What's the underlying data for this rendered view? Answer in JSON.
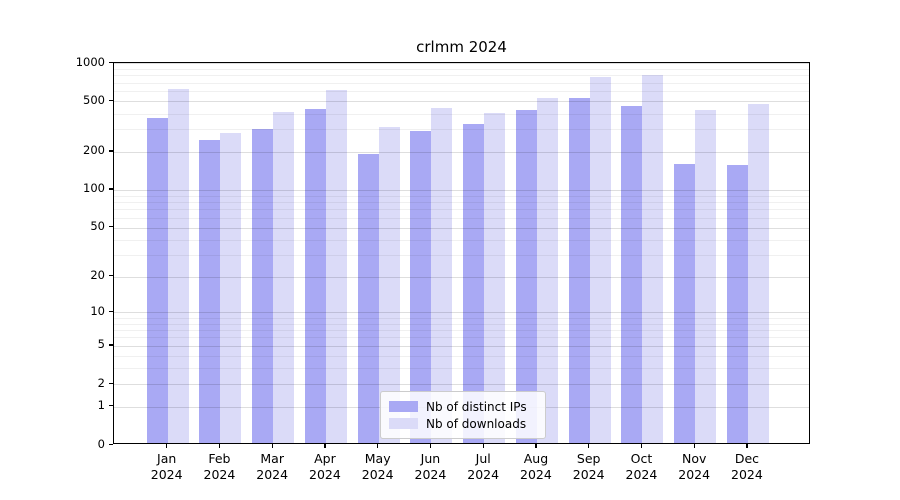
{
  "title": "crlmm 2024",
  "legend": {
    "items": [
      {
        "label": "Nb of distinct IPs",
        "color": "#a9a9f4"
      },
      {
        "label": "Nb of downloads",
        "color": "#dbdbf8"
      }
    ]
  },
  "chart_data": {
    "type": "bar",
    "title": "crlmm 2024",
    "categories": [
      "Jan 2024",
      "Feb 2024",
      "Mar 2024",
      "Apr 2024",
      "May 2024",
      "Jun 2024",
      "Jul 2024",
      "Aug 2024",
      "Sep 2024",
      "Oct 2024",
      "Nov 2024",
      "Dec 2024"
    ],
    "series": [
      {
        "name": "Nb of distinct IPs",
        "color": "#a9a9f4",
        "values": [
          355,
          240,
          290,
          420,
          185,
          280,
          320,
          415,
          515,
          445,
          155,
          152
        ]
      },
      {
        "name": "Nb of downloads",
        "color": "#dbdbf8",
        "values": [
          600,
          270,
          395,
          590,
          300,
          430,
          390,
          515,
          755,
          770,
          415,
          460
        ]
      }
    ],
    "yscale": "log10(1+x)",
    "ylim": [
      0,
      1000
    ],
    "yticks": [
      0,
      1,
      2,
      5,
      10,
      20,
      50,
      100,
      200,
      500,
      1000
    ],
    "minor_gridlines": [
      3,
      4,
      6,
      7,
      8,
      9,
      30,
      40,
      60,
      70,
      80,
      90,
      300,
      400,
      600,
      700,
      800,
      900
    ],
    "xlabel": "",
    "ylabel": "",
    "grid": "horizontal, drawn above bars",
    "legend_position": "lower center"
  }
}
